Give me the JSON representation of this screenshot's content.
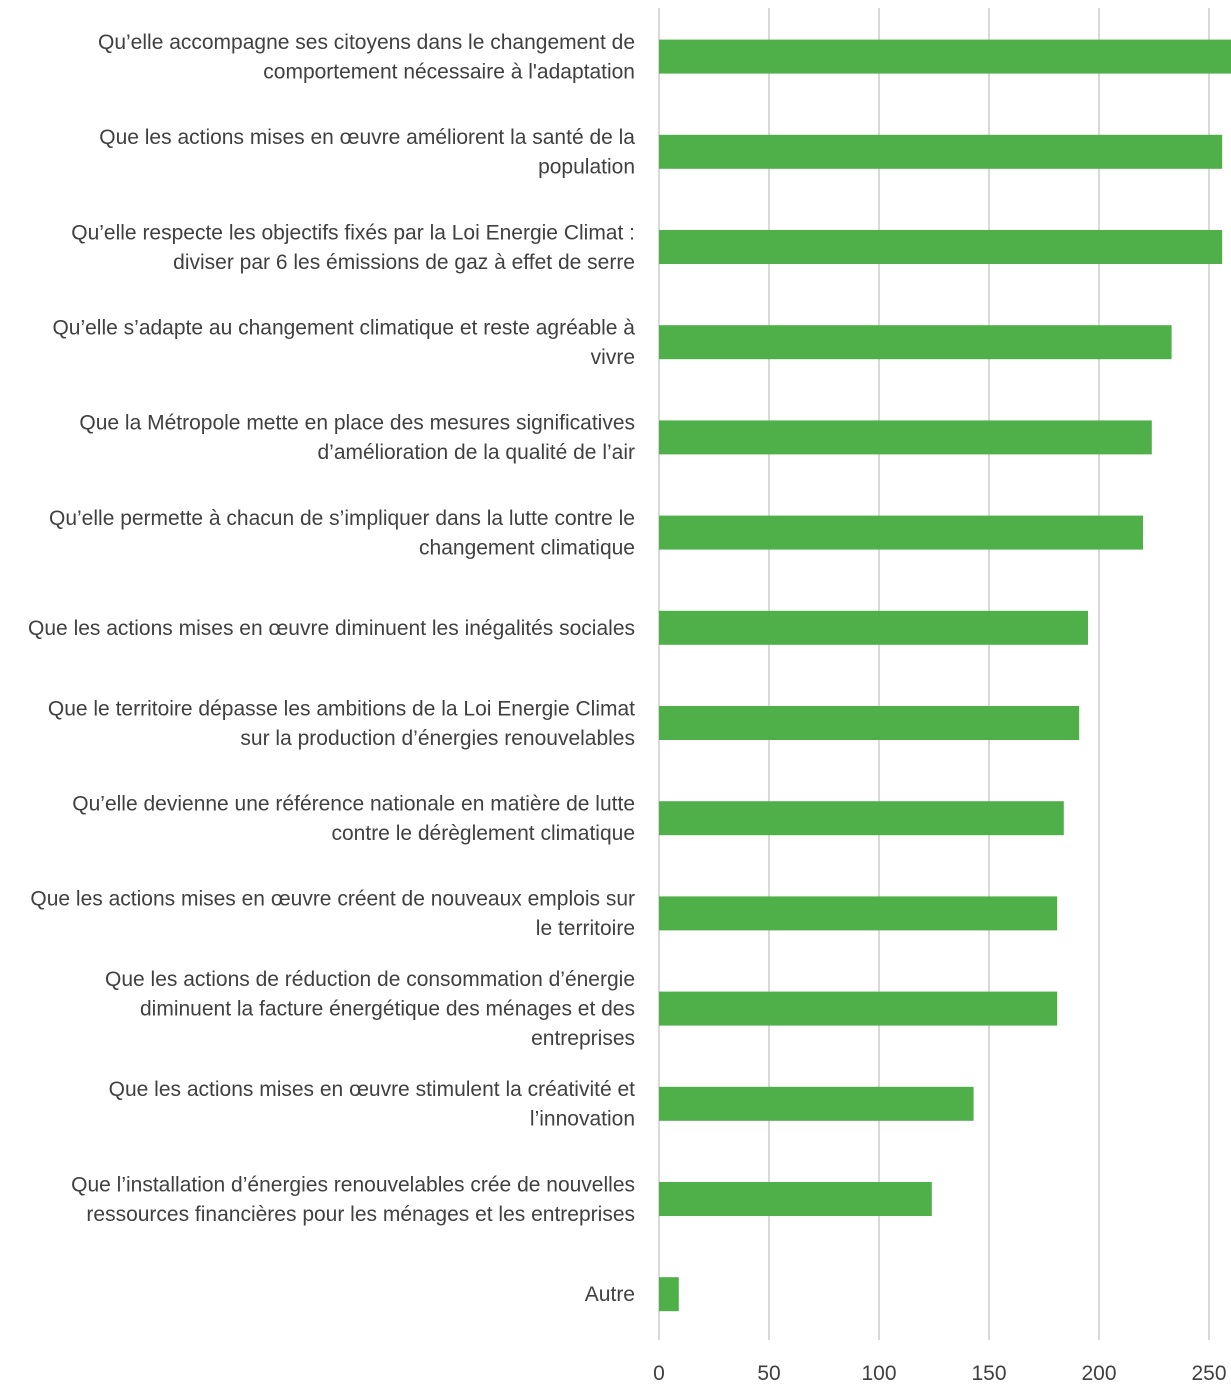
{
  "chart_data": {
    "type": "bar",
    "orientation": "horizontal",
    "categories": [
      [
        "Qu’elle accompagne ses citoyens dans le changement de",
        "comportement nécessaire à l'adaptation"
      ],
      [
        "Que les actions mises en œuvre améliorent la santé de la",
        "population"
      ],
      [
        "Qu’elle respecte les objectifs fixés par la Loi Energie Climat :",
        "diviser par 6 les émissions de gaz à effet de serre"
      ],
      [
        "Qu’elle s’adapte au changement climatique et reste agréable à",
        "vivre"
      ],
      [
        "Que la Métropole mette en place des mesures significatives",
        "d’amélioration de la qualité de l’air"
      ],
      [
        "Qu’elle permette à chacun de s’impliquer dans la lutte contre le",
        "changement climatique"
      ],
      [
        "Que les actions mises en œuvre diminuent les inégalités sociales"
      ],
      [
        "Que le territoire dépasse les ambitions de la Loi Energie Climat",
        "sur la production d’énergies renouvelables"
      ],
      [
        "Qu’elle devienne une référence nationale en matière de lutte",
        "contre le dérèglement climatique"
      ],
      [
        "Que les actions mises en œuvre créent de nouveaux emplois sur",
        "le territoire"
      ],
      [
        "Que les actions de réduction de consommation d’énergie",
        "diminuent la facture énergétique des ménages et des",
        "entreprises"
      ],
      [
        "Que les actions mises en œuvre stimulent la créativité et",
        "l’innovation"
      ],
      [
        "Que l’installation d’énergies renouvelables crée de nouvelles",
        "ressources financières pour les ménages et les entreprises"
      ],
      [
        "Autre"
      ]
    ],
    "values": [
      260,
      256,
      256,
      233,
      224,
      220,
      195,
      191,
      184,
      181,
      181,
      143,
      124,
      9
    ],
    "xlim": [
      0,
      260
    ],
    "xticks": [
      0,
      50,
      100,
      150,
      200,
      250
    ],
    "xlabel": "",
    "ylabel": "",
    "title": "",
    "grid": true,
    "bar_color": "#4fb04a"
  }
}
